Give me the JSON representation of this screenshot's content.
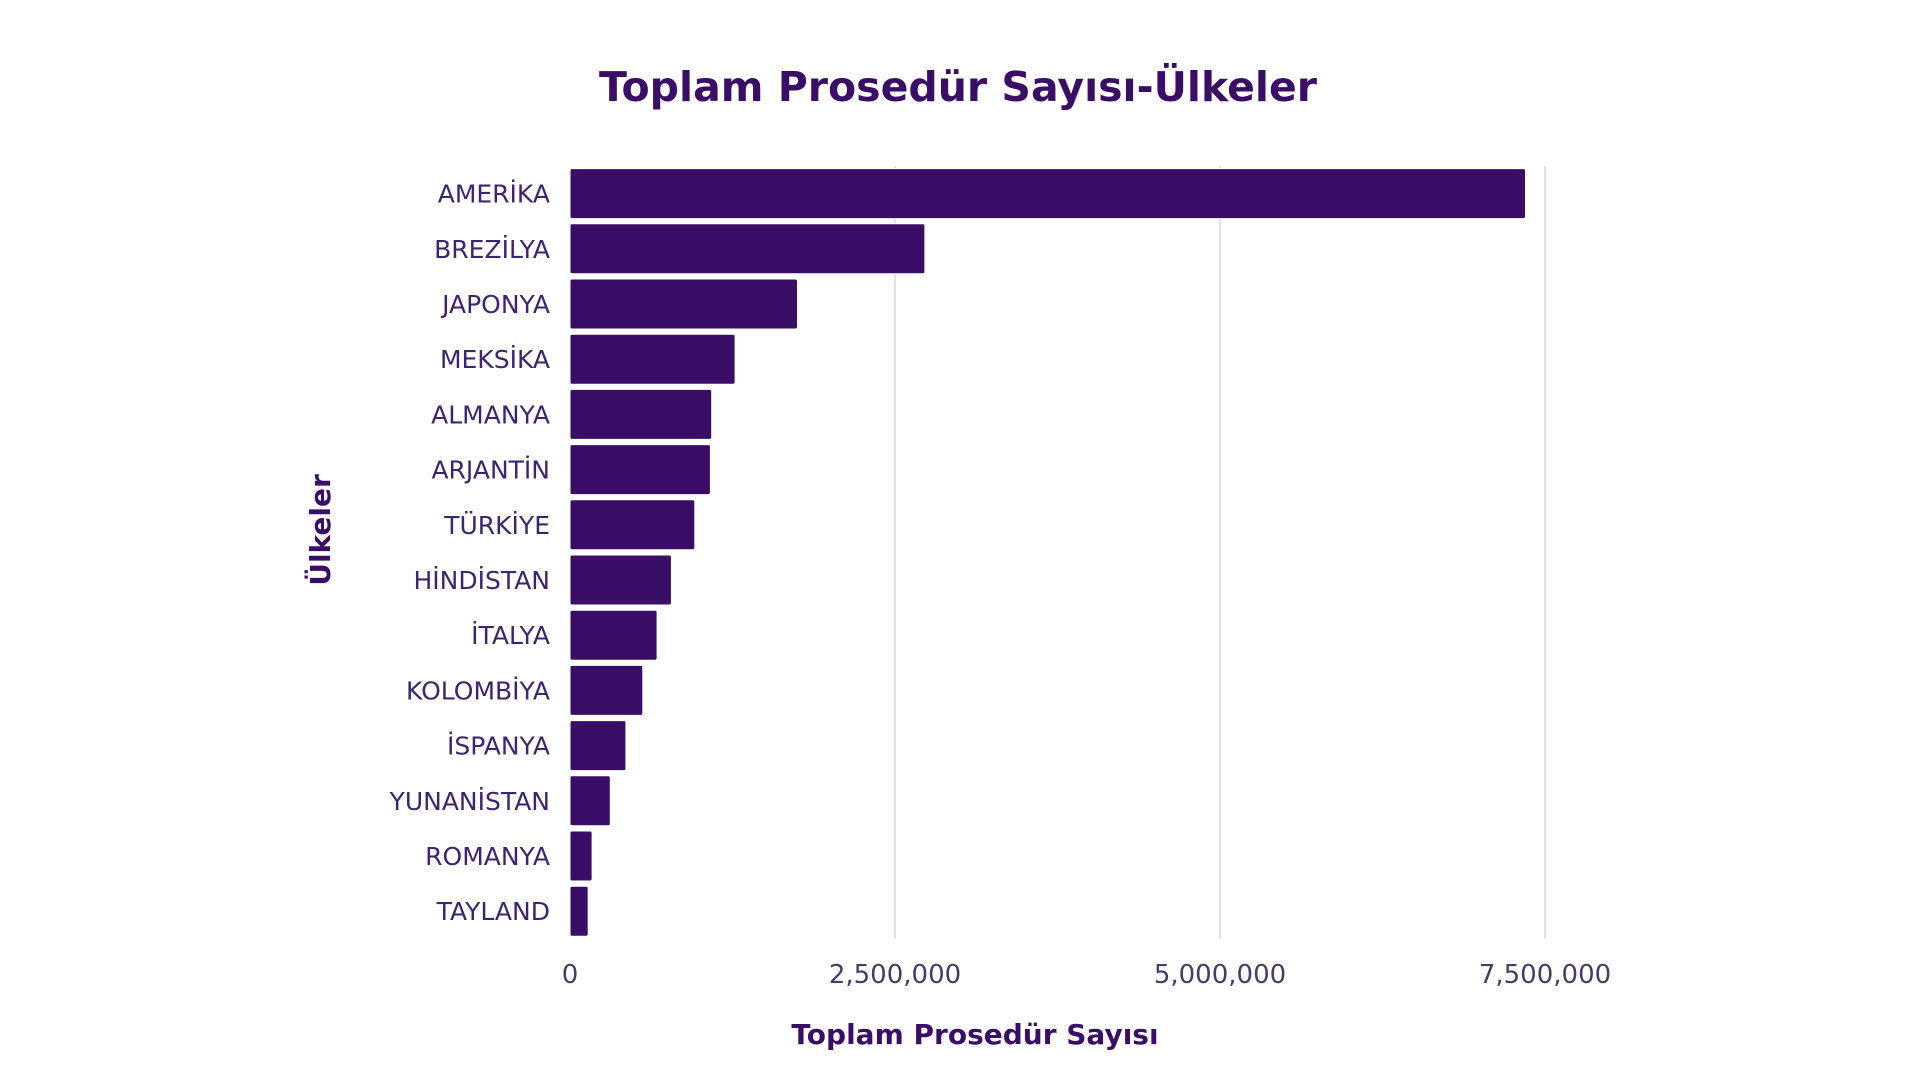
{
  "chart_data": {
    "type": "bar",
    "orientation": "horizontal",
    "title": "Toplam Prosedür Sayısı-Ülkeler",
    "xlabel": "Toplam Prosedür Sayısı",
    "ylabel": "Ülkeler",
    "categories": [
      "AMERİKA",
      "BREZİLYA",
      "JAPONYA",
      "MEKSİKA",
      "ALMANYA",
      "ARJANTİN",
      "TÜRKİYE",
      "HİNDİSTAN",
      "İTALYA",
      "KOLOMBİYA",
      "İSPANYA",
      "YUNANİSTAN",
      "ROMANYA",
      "TAYLAND"
    ],
    "values": [
      7350000,
      2730000,
      1750000,
      1270000,
      1090000,
      1080000,
      960000,
      780000,
      670000,
      560000,
      430000,
      310000,
      170000,
      140000
    ],
    "xlim": [
      0,
      7500000
    ],
    "xticks": [
      0,
      2500000,
      5000000,
      7500000
    ],
    "xtick_labels": [
      "0",
      "2,500,000",
      "5,000,000",
      "7,500,000"
    ],
    "grid": "vertical",
    "bar_color": "#3a0d66"
  }
}
